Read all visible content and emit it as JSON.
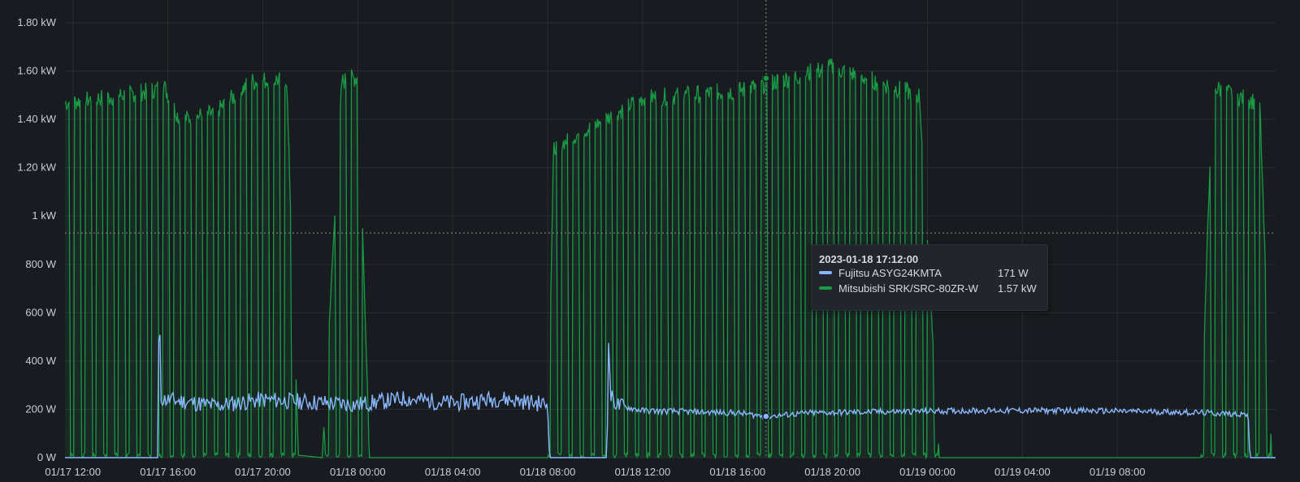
{
  "chart_data": {
    "type": "line",
    "title": "",
    "xlabel": "",
    "ylabel": "",
    "y_unit": "W",
    "ylim": [
      0,
      1800
    ],
    "y_ticks": [
      "0 W",
      "200 W",
      "400 W",
      "600 W",
      "800 W",
      "1 kW",
      "1.20 kW",
      "1.40 kW",
      "1.60 kW",
      "1.80 kW"
    ],
    "x_range": [
      "2023-01-17 11:40",
      "2023-01-19 14:40"
    ],
    "x_ticks": [
      "01/17 12:00",
      "01/17 16:00",
      "01/17 20:00",
      "01/18 00:00",
      "01/18 04:00",
      "01/18 08:00",
      "01/18 12:00",
      "01/18 16:00",
      "01/18 20:00",
      "01/19 00:00",
      "01/19 04:00",
      "01/19 08:00"
    ],
    "grid": true,
    "crosshair": {
      "x": "2023-01-18 17:12",
      "y_level": 930
    },
    "series": [
      {
        "name": "Fujitsu ASYG24KMTA",
        "color": "#8ab8ff",
        "x": [
          "2023-01-17 11:40",
          "2023-01-17 15:35",
          "2023-01-17 15:38",
          "2023-01-17 15:42",
          "2023-01-17 15:50",
          "2023-01-17 16:30",
          "2023-01-17 18:00",
          "2023-01-17 20:00",
          "2023-01-17 22:00",
          "2023-01-18 00:00",
          "2023-01-18 02:00",
          "2023-01-18 04:00",
          "2023-01-18 06:00",
          "2023-01-18 08:00",
          "2023-01-18 08:05",
          "2023-01-18 10:30",
          "2023-01-18 10:34",
          "2023-01-18 10:40",
          "2023-01-18 11:00",
          "2023-01-18 12:00",
          "2023-01-18 14:00",
          "2023-01-18 16:00",
          "2023-01-18 17:12",
          "2023-01-18 19:00",
          "2023-01-18 22:00",
          "2023-01-19 02:00",
          "2023-01-19 06:00",
          "2023-01-19 10:00",
          "2023-01-19 13:30",
          "2023-01-19 13:35",
          "2023-01-19 14:40"
        ],
        "values": [
          0,
          0,
          710,
          250,
          240,
          235,
          215,
          240,
          230,
          220,
          245,
          225,
          245,
          220,
          0,
          0,
          480,
          250,
          215,
          195,
          190,
          185,
          171,
          185,
          190,
          195,
          195,
          190,
          180,
          0,
          0
        ]
      },
      {
        "name": "Mitsubishi SRK/SRC-80ZR-W",
        "color": "#1a9a45",
        "x": [
          "2023-01-17 11:40",
          "2023-01-17 15:15",
          "2023-01-17 15:50",
          "2023-01-17 16:30",
          "2023-01-17 18:00",
          "2023-01-17 19:30",
          "2023-01-17 21:00",
          "2023-01-17 21:30",
          "2023-01-17 22:30",
          "2023-01-17 23:20",
          "2023-01-18 00:00",
          "2023-01-18 00:30",
          "2023-01-18 08:00",
          "2023-01-18 08:15",
          "2023-01-18 12:00",
          "2023-01-18 16:00",
          "2023-01-18 17:12",
          "2023-01-18 20:00",
          "2023-01-18 23:40",
          "2023-01-19 00:30",
          "2023-01-19 11:30",
          "2023-01-19 12:00",
          "2023-01-19 13:00",
          "2023-01-19 14:00",
          "2023-01-19 14:30"
        ],
        "values": [
          1490,
          1540,
          1560,
          1420,
          1450,
          1580,
          1590,
          10,
          0,
          1580,
          1600,
          0,
          0,
          1300,
          1510,
          1540,
          1570,
          1640,
          1520,
          0,
          0,
          1560,
          1520,
          1490,
          0
        ]
      }
    ]
  },
  "tooltip": {
    "time": "2023-01-18 17:12:00",
    "rows": [
      {
        "name": "Fujitsu ASYG24KMTA",
        "value": "171 W",
        "color": "#8ab8ff"
      },
      {
        "name": "Mitsubishi SRK/SRC-80ZR-W",
        "value": "1.57 kW",
        "color": "#1a9a45"
      }
    ]
  }
}
